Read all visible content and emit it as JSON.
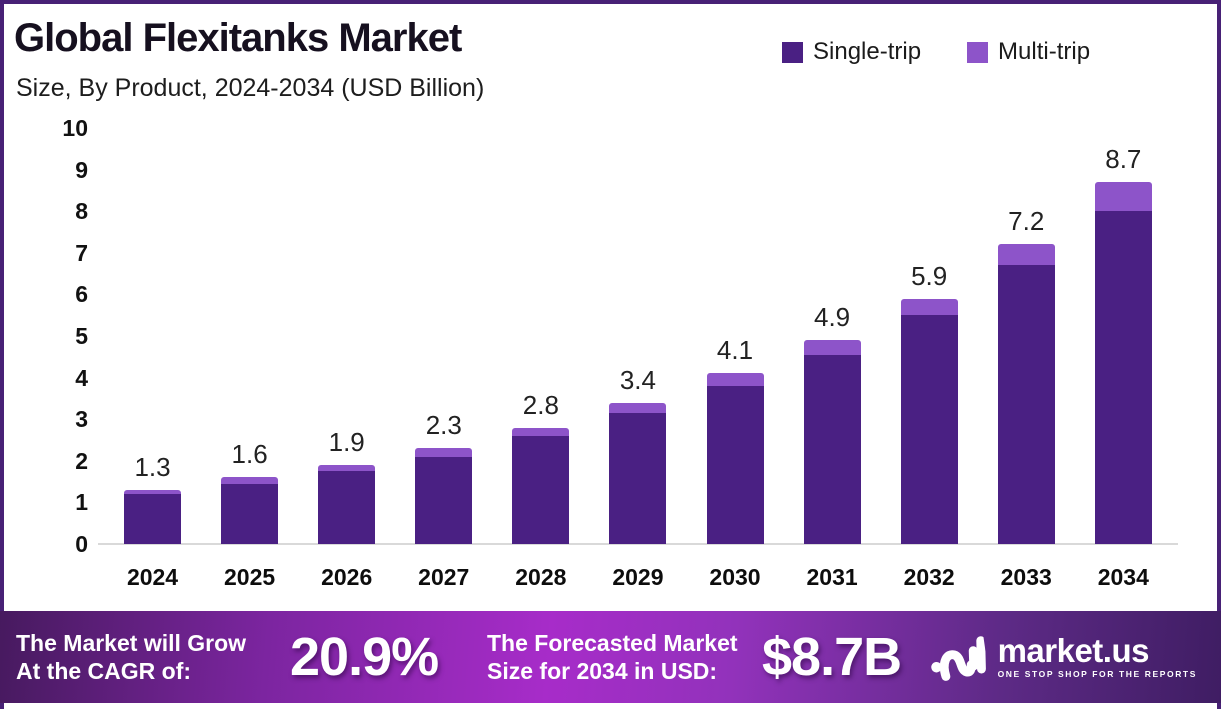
{
  "header": {
    "title": "Global Flexitanks Market",
    "subtitle": "Size, By Product, 2024-2034 (USD Billion)"
  },
  "legend": {
    "items": [
      {
        "label": "Single-trip",
        "color": "#4a2083"
      },
      {
        "label": "Multi-trip",
        "color": "#8d54c9"
      }
    ],
    "position": "top-right"
  },
  "chart_data": {
    "type": "bar",
    "stacked": true,
    "title": "Global Flexitanks Market Size, By Product, 2024-2034 (USD Billion)",
    "xlabel": "",
    "ylabel": "",
    "categories": [
      "2024",
      "2025",
      "2026",
      "2027",
      "2028",
      "2029",
      "2030",
      "2031",
      "2032",
      "2033",
      "2034"
    ],
    "series": [
      {
        "name": "Single-trip",
        "color": "#4a2083",
        "values": [
          1.2,
          1.45,
          1.75,
          2.1,
          2.6,
          3.15,
          3.8,
          4.55,
          5.5,
          6.7,
          8.0
        ]
      },
      {
        "name": "Multi-trip",
        "color": "#8d54c9",
        "values": [
          0.1,
          0.15,
          0.15,
          0.2,
          0.2,
          0.25,
          0.3,
          0.35,
          0.4,
          0.5,
          0.7
        ]
      }
    ],
    "totals": [
      1.3,
      1.6,
      1.9,
      2.3,
      2.8,
      3.4,
      4.1,
      4.9,
      5.9,
      7.2,
      8.7
    ],
    "total_labels": [
      "1.3",
      "1.6",
      "1.9",
      "2.3",
      "2.8",
      "3.4",
      "4.1",
      "4.9",
      "5.9",
      "7.2",
      "8.7"
    ],
    "ylim": [
      0,
      10
    ],
    "ytick_step": 1,
    "grid": false,
    "legend_position": "top-right"
  },
  "banner": {
    "cagr_label_line1": "The Market will Grow",
    "cagr_label_line2": "At the CAGR of:",
    "cagr_value": "20.9%",
    "forecast_label_line1": "The Forecasted Market",
    "forecast_label_line2": "Size for 2034 in USD:",
    "forecast_value": "$8.7B",
    "logo_text": "market.us",
    "logo_tagline": "ONE STOP SHOP FOR THE REPORTS"
  },
  "colors": {
    "single_trip": "#4a2083",
    "multi_trip": "#8d54c9",
    "frame_border": "#482176",
    "banner_gradient_start": "#471a5f",
    "banner_gradient_mid": "#a72cc9",
    "banner_gradient_end": "#3f1d63",
    "axis_line": "#d9d9d9"
  }
}
